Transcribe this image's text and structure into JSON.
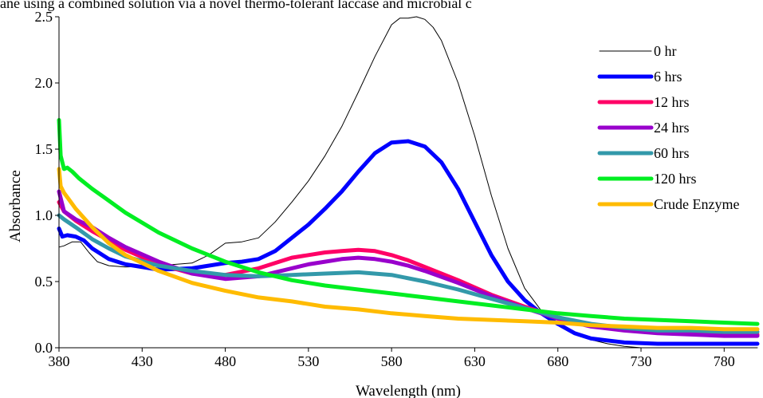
{
  "caption": "ane using a combined solution via a novel thermo-tolerant laccase and microbial c",
  "chart_data": {
    "type": "line",
    "title": "",
    "xlabel": "Wavelength (nm)",
    "ylabel": "Absorbance",
    "xlim": [
      380,
      800
    ],
    "ylim": [
      0,
      2.5
    ],
    "xticks": [
      "380",
      "430",
      "480",
      "530",
      "580",
      "630",
      "680",
      "730",
      "780"
    ],
    "yticks": [
      "0.0",
      "0.5",
      "1.0",
      "1.5",
      "2.0",
      "2.5"
    ],
    "legend_position": "right",
    "series": [
      {
        "name": "0 hr",
        "color": "#000000",
        "width": 1,
        "x": [
          380,
          383,
          388,
          393,
          398,
          403,
          410,
          420,
          440,
          460,
          470,
          480,
          490,
          500,
          510,
          520,
          530,
          540,
          550,
          560,
          570,
          580,
          585,
          590,
          595,
          600,
          605,
          610,
          620,
          630,
          640,
          650,
          660,
          670,
          680,
          690,
          700,
          710,
          720,
          730,
          740,
          760,
          780,
          800
        ],
        "y": [
          0.76,
          0.77,
          0.8,
          0.8,
          0.72,
          0.65,
          0.62,
          0.61,
          0.62,
          0.64,
          0.7,
          0.79,
          0.8,
          0.83,
          0.95,
          1.1,
          1.26,
          1.45,
          1.67,
          1.93,
          2.2,
          2.44,
          2.49,
          2.49,
          2.5,
          2.48,
          2.42,
          2.32,
          2.0,
          1.6,
          1.15,
          0.75,
          0.45,
          0.28,
          0.17,
          0.1,
          0.06,
          0.03,
          0.01,
          0.0,
          0.0,
          0.0,
          0.0,
          0.0
        ]
      },
      {
        "name": "6 hrs",
        "color": "#0000ff",
        "width": 5,
        "x": [
          380,
          382,
          385,
          390,
          395,
          400,
          410,
          420,
          440,
          460,
          480,
          490,
          500,
          510,
          520,
          530,
          540,
          550,
          560,
          570,
          580,
          590,
          600,
          610,
          620,
          630,
          640,
          650,
          660,
          670,
          680,
          690,
          700,
          720,
          740,
          760,
          780,
          800
        ],
        "y": [
          0.9,
          0.84,
          0.85,
          0.84,
          0.81,
          0.75,
          0.67,
          0.63,
          0.59,
          0.6,
          0.64,
          0.65,
          0.67,
          0.73,
          0.83,
          0.93,
          1.05,
          1.18,
          1.33,
          1.47,
          1.55,
          1.56,
          1.52,
          1.4,
          1.2,
          0.95,
          0.7,
          0.5,
          0.36,
          0.26,
          0.18,
          0.11,
          0.07,
          0.04,
          0.03,
          0.03,
          0.03,
          0.03
        ]
      },
      {
        "name": "12 hrs",
        "color": "#ff0066",
        "width": 5,
        "x": [
          380,
          383,
          390,
          400,
          410,
          420,
          440,
          460,
          480,
          500,
          510,
          520,
          530,
          540,
          550,
          560,
          570,
          580,
          590,
          600,
          620,
          640,
          660,
          680,
          700,
          720,
          740,
          760,
          780,
          800
        ],
        "y": [
          1.1,
          1.03,
          0.96,
          0.88,
          0.81,
          0.74,
          0.63,
          0.56,
          0.55,
          0.6,
          0.64,
          0.68,
          0.7,
          0.72,
          0.73,
          0.74,
          0.73,
          0.7,
          0.66,
          0.61,
          0.51,
          0.4,
          0.31,
          0.23,
          0.17,
          0.14,
          0.12,
          0.11,
          0.1,
          0.1
        ]
      },
      {
        "name": "24 hrs",
        "color": "#9900cc",
        "width": 5,
        "x": [
          380,
          383,
          390,
          400,
          410,
          420,
          440,
          460,
          480,
          500,
          510,
          520,
          530,
          540,
          550,
          560,
          570,
          580,
          590,
          600,
          620,
          640,
          660,
          680,
          700,
          720,
          740,
          760,
          780,
          800
        ],
        "y": [
          1.18,
          1.03,
          0.97,
          0.91,
          0.83,
          0.76,
          0.65,
          0.56,
          0.52,
          0.54,
          0.57,
          0.6,
          0.63,
          0.65,
          0.67,
          0.68,
          0.67,
          0.65,
          0.62,
          0.58,
          0.49,
          0.39,
          0.3,
          0.22,
          0.16,
          0.13,
          0.11,
          0.1,
          0.09,
          0.09
        ]
      },
      {
        "name": "60 hrs",
        "color": "#3399aa",
        "width": 5,
        "x": [
          380,
          383,
          390,
          400,
          410,
          420,
          440,
          460,
          480,
          500,
          520,
          540,
          560,
          580,
          600,
          620,
          640,
          660,
          680,
          700,
          720,
          740,
          760,
          780,
          800
        ],
        "y": [
          1.0,
          0.97,
          0.91,
          0.82,
          0.75,
          0.69,
          0.62,
          0.58,
          0.55,
          0.54,
          0.55,
          0.56,
          0.57,
          0.55,
          0.5,
          0.44,
          0.37,
          0.3,
          0.23,
          0.18,
          0.15,
          0.13,
          0.13,
          0.12,
          0.12
        ]
      },
      {
        "name": "120 hrs",
        "color": "#00ee22",
        "width": 5,
        "x": [
          380,
          381,
          383,
          385,
          388,
          392,
          400,
          410,
          420,
          440,
          460,
          480,
          500,
          520,
          530,
          540,
          560,
          580,
          600,
          620,
          640,
          660,
          680,
          700,
          720,
          740,
          760,
          780,
          800
        ],
        "y": [
          1.72,
          1.45,
          1.35,
          1.36,
          1.33,
          1.28,
          1.2,
          1.11,
          1.02,
          0.87,
          0.75,
          0.65,
          0.57,
          0.51,
          0.49,
          0.47,
          0.44,
          0.41,
          0.38,
          0.35,
          0.32,
          0.29,
          0.26,
          0.24,
          0.22,
          0.21,
          0.2,
          0.19,
          0.18
        ]
      },
      {
        "name": "Crude Enzyme",
        "color": "#ffbb00",
        "width": 5,
        "x": [
          380,
          381,
          383,
          386,
          390,
          400,
          410,
          420,
          440,
          460,
          480,
          500,
          520,
          540,
          560,
          580,
          600,
          620,
          640,
          660,
          680,
          700,
          720,
          740,
          760,
          780,
          800
        ],
        "y": [
          1.35,
          1.22,
          1.17,
          1.12,
          1.05,
          0.91,
          0.79,
          0.7,
          0.58,
          0.49,
          0.43,
          0.38,
          0.35,
          0.31,
          0.29,
          0.26,
          0.24,
          0.22,
          0.21,
          0.2,
          0.19,
          0.17,
          0.16,
          0.15,
          0.15,
          0.14,
          0.14
        ]
      }
    ]
  }
}
